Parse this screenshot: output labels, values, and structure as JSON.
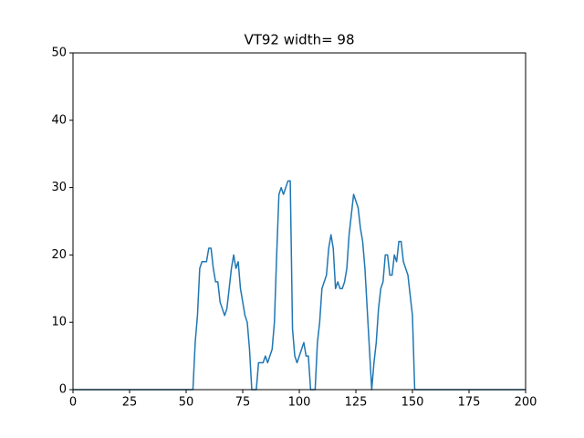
{
  "chart_data": {
    "type": "line",
    "title": "VT92 width= 98",
    "x": [
      0,
      53,
      54,
      55,
      56,
      57,
      58,
      59,
      60,
      61,
      62,
      63,
      64,
      65,
      66,
      67,
      68,
      69,
      70,
      71,
      72,
      73,
      74,
      75,
      76,
      77,
      78,
      79,
      80,
      81,
      82,
      83,
      84,
      85,
      86,
      87,
      88,
      89,
      90,
      91,
      92,
      93,
      94,
      95,
      96,
      97,
      98,
      99,
      100,
      101,
      102,
      103,
      104,
      105,
      106,
      107,
      108,
      109,
      110,
      111,
      112,
      113,
      114,
      115,
      116,
      117,
      118,
      119,
      120,
      121,
      122,
      123,
      124,
      125,
      126,
      127,
      128,
      129,
      130,
      131,
      132,
      133,
      134,
      135,
      136,
      137,
      138,
      139,
      140,
      141,
      142,
      143,
      144,
      145,
      146,
      147,
      148,
      149,
      150,
      151,
      200
    ],
    "series": [
      {
        "color": "#1f77b4",
        "values": [
          0,
          0,
          7,
          11,
          18,
          19,
          19,
          19,
          21,
          21,
          18,
          16,
          16,
          13,
          12,
          11,
          12,
          15,
          18,
          20,
          18,
          19,
          15,
          13,
          11,
          10,
          6,
          0,
          0,
          0,
          4,
          4,
          4,
          5,
          4,
          5,
          6,
          10,
          20,
          29,
          30,
          29,
          30,
          31,
          31,
          9,
          5,
          4,
          5,
          6,
          7,
          5,
          5,
          0,
          0,
          0,
          7,
          10,
          15,
          16,
          17,
          21,
          23,
          21,
          15,
          16,
          15,
          15,
          16,
          18,
          23,
          26,
          29,
          28,
          27,
          24,
          22,
          18,
          12,
          6,
          0,
          4,
          7,
          12,
          15,
          16,
          20,
          20,
          17,
          17,
          20,
          19,
          22,
          22,
          19,
          18,
          17,
          14,
          11,
          0,
          0
        ]
      }
    ],
    "xlim": [
      0,
      200
    ],
    "xticks": [
      0,
      25,
      50,
      75,
      100,
      125,
      150,
      175,
      200
    ],
    "ylim": [
      0,
      50
    ],
    "yticks": [
      0,
      10,
      20,
      30,
      40,
      50
    ]
  }
}
